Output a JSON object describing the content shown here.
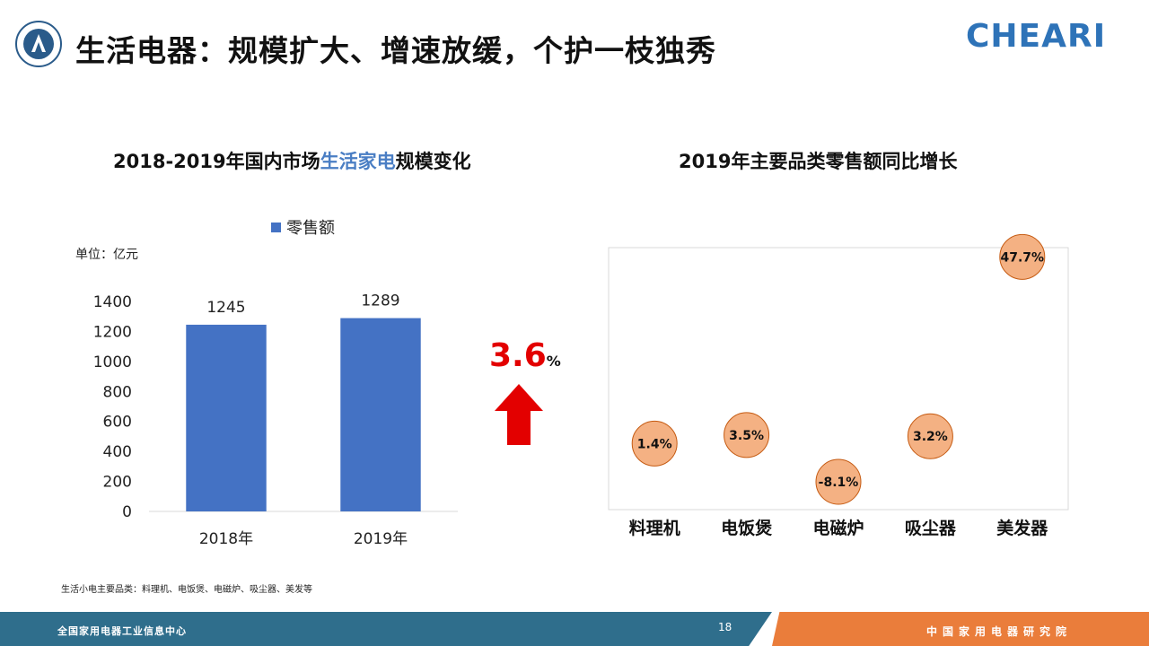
{
  "header": {
    "title": "生活电器：规模扩大、增速放缓，个护一枝独秀",
    "brand": "CHEARI"
  },
  "left_chart": {
    "title_prefix": "2018-2019年国内市场",
    "title_highlight": "生活家电",
    "title_suffix": "规模变化",
    "legend": "零售额",
    "unit": "单位：亿元",
    "growth_value": "3.6",
    "growth_unit": "%"
  },
  "right_chart": {
    "title": "2019年主要品类零售额同比增长"
  },
  "footnote": "生活小电主要品类：料理机、电饭煲、电磁炉、吸尘器、美发等",
  "footer": {
    "left": "全国家用电器工业信息中心",
    "page": "18",
    "right": "中国家用电器研究院"
  },
  "colors": {
    "bar": "#4472c4",
    "bubble_fill": "#f4b183",
    "bubble_stroke": "#c55a11",
    "arrow": "#e30000",
    "brand": "#2e73b8",
    "footer_blue": "#2f6e8c",
    "footer_orange": "#ea7d3b"
  },
  "chart_data": [
    {
      "type": "bar",
      "categories": [
        "2018年",
        "2019年"
      ],
      "series": [
        {
          "name": "零售额",
          "values": [
            1245,
            1289
          ]
        }
      ],
      "ylim": [
        0,
        1400
      ],
      "yticks": [
        0,
        200,
        400,
        600,
        800,
        1000,
        1200,
        1400
      ],
      "data_labels": [
        "1245",
        "1289"
      ]
    },
    {
      "type": "scatter",
      "categories": [
        "料理机",
        "电饭煲",
        "电磁炉",
        "吸尘器",
        "美发器"
      ],
      "values": [
        1.4,
        3.5,
        -8.1,
        3.2,
        47.7
      ],
      "data_labels": [
        "1.4%",
        "3.5%",
        "-8.1%",
        "3.2%",
        "47.7%"
      ]
    }
  ]
}
